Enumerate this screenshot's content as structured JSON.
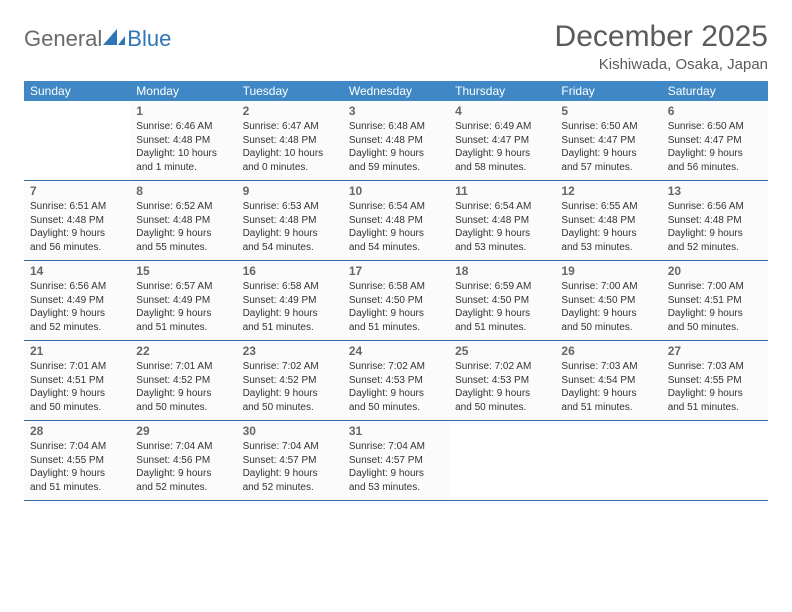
{
  "logo": {
    "part1": "General",
    "part2": "Blue"
  },
  "title": "December 2025",
  "location": "Kishiwada, Osaka, Japan",
  "colors": {
    "header_bg": "#3f88c5",
    "header_text": "#ffffff",
    "divider": "#2f6ea8",
    "logo_gray": "#6a6a6a",
    "logo_blue": "#2f76b8",
    "title_color": "#5b5b5b"
  },
  "daysOfWeek": [
    "Sunday",
    "Monday",
    "Tuesday",
    "Wednesday",
    "Thursday",
    "Friday",
    "Saturday"
  ],
  "weeks": [
    [
      {
        "n": "",
        "sr": "",
        "ss": "",
        "dl": ""
      },
      {
        "n": "1",
        "sr": "6:46 AM",
        "ss": "4:48 PM",
        "dl": "10 hours and 1 minute."
      },
      {
        "n": "2",
        "sr": "6:47 AM",
        "ss": "4:48 PM",
        "dl": "10 hours and 0 minutes."
      },
      {
        "n": "3",
        "sr": "6:48 AM",
        "ss": "4:48 PM",
        "dl": "9 hours and 59 minutes."
      },
      {
        "n": "4",
        "sr": "6:49 AM",
        "ss": "4:47 PM",
        "dl": "9 hours and 58 minutes."
      },
      {
        "n": "5",
        "sr": "6:50 AM",
        "ss": "4:47 PM",
        "dl": "9 hours and 57 minutes."
      },
      {
        "n": "6",
        "sr": "6:50 AM",
        "ss": "4:47 PM",
        "dl": "9 hours and 56 minutes."
      }
    ],
    [
      {
        "n": "7",
        "sr": "6:51 AM",
        "ss": "4:48 PM",
        "dl": "9 hours and 56 minutes."
      },
      {
        "n": "8",
        "sr": "6:52 AM",
        "ss": "4:48 PM",
        "dl": "9 hours and 55 minutes."
      },
      {
        "n": "9",
        "sr": "6:53 AM",
        "ss": "4:48 PM",
        "dl": "9 hours and 54 minutes."
      },
      {
        "n": "10",
        "sr": "6:54 AM",
        "ss": "4:48 PM",
        "dl": "9 hours and 54 minutes."
      },
      {
        "n": "11",
        "sr": "6:54 AM",
        "ss": "4:48 PM",
        "dl": "9 hours and 53 minutes."
      },
      {
        "n": "12",
        "sr": "6:55 AM",
        "ss": "4:48 PM",
        "dl": "9 hours and 53 minutes."
      },
      {
        "n": "13",
        "sr": "6:56 AM",
        "ss": "4:48 PM",
        "dl": "9 hours and 52 minutes."
      }
    ],
    [
      {
        "n": "14",
        "sr": "6:56 AM",
        "ss": "4:49 PM",
        "dl": "9 hours and 52 minutes."
      },
      {
        "n": "15",
        "sr": "6:57 AM",
        "ss": "4:49 PM",
        "dl": "9 hours and 51 minutes."
      },
      {
        "n": "16",
        "sr": "6:58 AM",
        "ss": "4:49 PM",
        "dl": "9 hours and 51 minutes."
      },
      {
        "n": "17",
        "sr": "6:58 AM",
        "ss": "4:50 PM",
        "dl": "9 hours and 51 minutes."
      },
      {
        "n": "18",
        "sr": "6:59 AM",
        "ss": "4:50 PM",
        "dl": "9 hours and 51 minutes."
      },
      {
        "n": "19",
        "sr": "7:00 AM",
        "ss": "4:50 PM",
        "dl": "9 hours and 50 minutes."
      },
      {
        "n": "20",
        "sr": "7:00 AM",
        "ss": "4:51 PM",
        "dl": "9 hours and 50 minutes."
      }
    ],
    [
      {
        "n": "21",
        "sr": "7:01 AM",
        "ss": "4:51 PM",
        "dl": "9 hours and 50 minutes."
      },
      {
        "n": "22",
        "sr": "7:01 AM",
        "ss": "4:52 PM",
        "dl": "9 hours and 50 minutes."
      },
      {
        "n": "23",
        "sr": "7:02 AM",
        "ss": "4:52 PM",
        "dl": "9 hours and 50 minutes."
      },
      {
        "n": "24",
        "sr": "7:02 AM",
        "ss": "4:53 PM",
        "dl": "9 hours and 50 minutes."
      },
      {
        "n": "25",
        "sr": "7:02 AM",
        "ss": "4:53 PM",
        "dl": "9 hours and 50 minutes."
      },
      {
        "n": "26",
        "sr": "7:03 AM",
        "ss": "4:54 PM",
        "dl": "9 hours and 51 minutes."
      },
      {
        "n": "27",
        "sr": "7:03 AM",
        "ss": "4:55 PM",
        "dl": "9 hours and 51 minutes."
      }
    ],
    [
      {
        "n": "28",
        "sr": "7:04 AM",
        "ss": "4:55 PM",
        "dl": "9 hours and 51 minutes."
      },
      {
        "n": "29",
        "sr": "7:04 AM",
        "ss": "4:56 PM",
        "dl": "9 hours and 52 minutes."
      },
      {
        "n": "30",
        "sr": "7:04 AM",
        "ss": "4:57 PM",
        "dl": "9 hours and 52 minutes."
      },
      {
        "n": "31",
        "sr": "7:04 AM",
        "ss": "4:57 PM",
        "dl": "9 hours and 53 minutes."
      },
      {
        "n": "",
        "sr": "",
        "ss": "",
        "dl": ""
      },
      {
        "n": "",
        "sr": "",
        "ss": "",
        "dl": ""
      },
      {
        "n": "",
        "sr": "",
        "ss": "",
        "dl": ""
      }
    ]
  ],
  "labels": {
    "sunrise": "Sunrise:",
    "sunset": "Sunset:",
    "daylight": "Daylight:"
  }
}
